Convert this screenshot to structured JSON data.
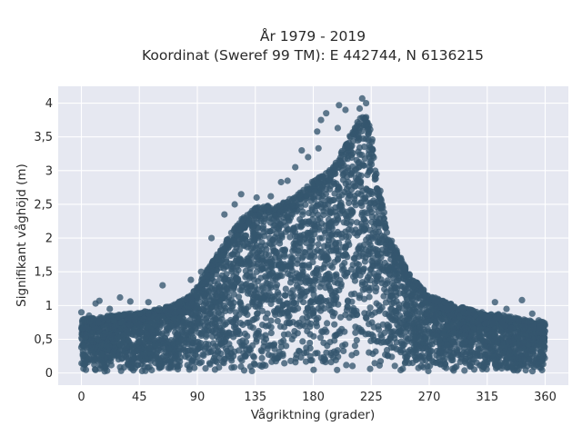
{
  "chart_data": {
    "type": "scatter",
    "title": [
      "År 1979 - 2019",
      "Koordinat (Sweref 99 TM): E 442744, N 6136215"
    ],
    "xlabel": "Vågriktning (grader)",
    "ylabel": "Signifikant våghöjd (m)",
    "xlim": [
      -18,
      378
    ],
    "ylim": [
      -0.18,
      4.25
    ],
    "xticks": [
      0,
      45,
      90,
      135,
      180,
      225,
      270,
      315,
      360
    ],
    "xtick_labels": [
      "0",
      "45",
      "90",
      "135",
      "180",
      "225",
      "270",
      "315",
      "360"
    ],
    "yticks": [
      0,
      0.5,
      1,
      1.5,
      2,
      2.5,
      3,
      3.5,
      4
    ],
    "ytick_labels": [
      "0",
      "0,5",
      "1",
      "1,5",
      "2",
      "2,5",
      "3",
      "3,5",
      "4"
    ],
    "grid": true,
    "legend": "none",
    "marker_color": "#34566e",
    "background_color": "#e6e8f1",
    "grid_color": "#ffffff",
    "envelope": {
      "x": [
        0,
        20,
        45,
        70,
        85,
        100,
        115,
        125,
        135,
        150,
        165,
        180,
        195,
        205,
        215,
        220,
        225,
        230,
        240,
        255,
        270,
        300,
        330,
        345,
        360
      ],
      "ymax": [
        0.8,
        0.85,
        0.9,
        1.0,
        1.15,
        1.6,
        2.05,
        2.3,
        2.45,
        2.5,
        2.6,
        2.85,
        3.05,
        3.4,
        3.75,
        3.85,
        3.6,
        2.8,
        2.0,
        1.45,
        1.15,
        0.95,
        0.85,
        0.8,
        0.75
      ]
    },
    "outliers": [
      {
        "x": 200,
        "y": 3.97
      },
      {
        "x": 218,
        "y": 4.07
      },
      {
        "x": 221,
        "y": 4.0
      },
      {
        "x": 216,
        "y": 3.92
      },
      {
        "x": 190,
        "y": 3.85
      },
      {
        "x": 186,
        "y": 3.75
      },
      {
        "x": 183,
        "y": 3.58
      },
      {
        "x": 199,
        "y": 3.63
      },
      {
        "x": 205,
        "y": 3.9
      },
      {
        "x": 184,
        "y": 3.33
      },
      {
        "x": 171,
        "y": 3.3
      },
      {
        "x": 176,
        "y": 3.2
      },
      {
        "x": 166,
        "y": 3.05
      },
      {
        "x": 160,
        "y": 2.85
      },
      {
        "x": 155,
        "y": 2.83
      },
      {
        "x": 147,
        "y": 2.62
      },
      {
        "x": 136,
        "y": 2.6
      },
      {
        "x": 124,
        "y": 2.65
      },
      {
        "x": 119,
        "y": 2.5
      },
      {
        "x": 111,
        "y": 2.35
      },
      {
        "x": 101,
        "y": 2.0
      },
      {
        "x": 93,
        "y": 1.5
      },
      {
        "x": 85,
        "y": 1.38
      },
      {
        "x": 76,
        "y": 1.05
      },
      {
        "x": 63,
        "y": 1.3
      },
      {
        "x": 52,
        "y": 1.05
      },
      {
        "x": 38,
        "y": 1.06
      },
      {
        "x": 30,
        "y": 1.12
      },
      {
        "x": 22,
        "y": 0.95
      },
      {
        "x": 14,
        "y": 1.07
      },
      {
        "x": 11,
        "y": 1.03
      },
      {
        "x": 0,
        "y": 0.9
      },
      {
        "x": 6,
        "y": 0.85
      },
      {
        "x": 232,
        "y": 2.7
      },
      {
        "x": 236,
        "y": 2.15
      },
      {
        "x": 243,
        "y": 1.65
      },
      {
        "x": 251,
        "y": 1.55
      },
      {
        "x": 262,
        "y": 1.3
      },
      {
        "x": 274,
        "y": 1.08
      },
      {
        "x": 282,
        "y": 1.05
      },
      {
        "x": 296,
        "y": 0.95
      },
      {
        "x": 311,
        "y": 0.9
      },
      {
        "x": 321,
        "y": 1.05
      },
      {
        "x": 330,
        "y": 0.95
      },
      {
        "x": 342,
        "y": 1.08
      },
      {
        "x": 350,
        "y": 0.88
      },
      {
        "x": 355,
        "y": 0.78
      },
      {
        "x": 358,
        "y": 0.65
      }
    ]
  }
}
